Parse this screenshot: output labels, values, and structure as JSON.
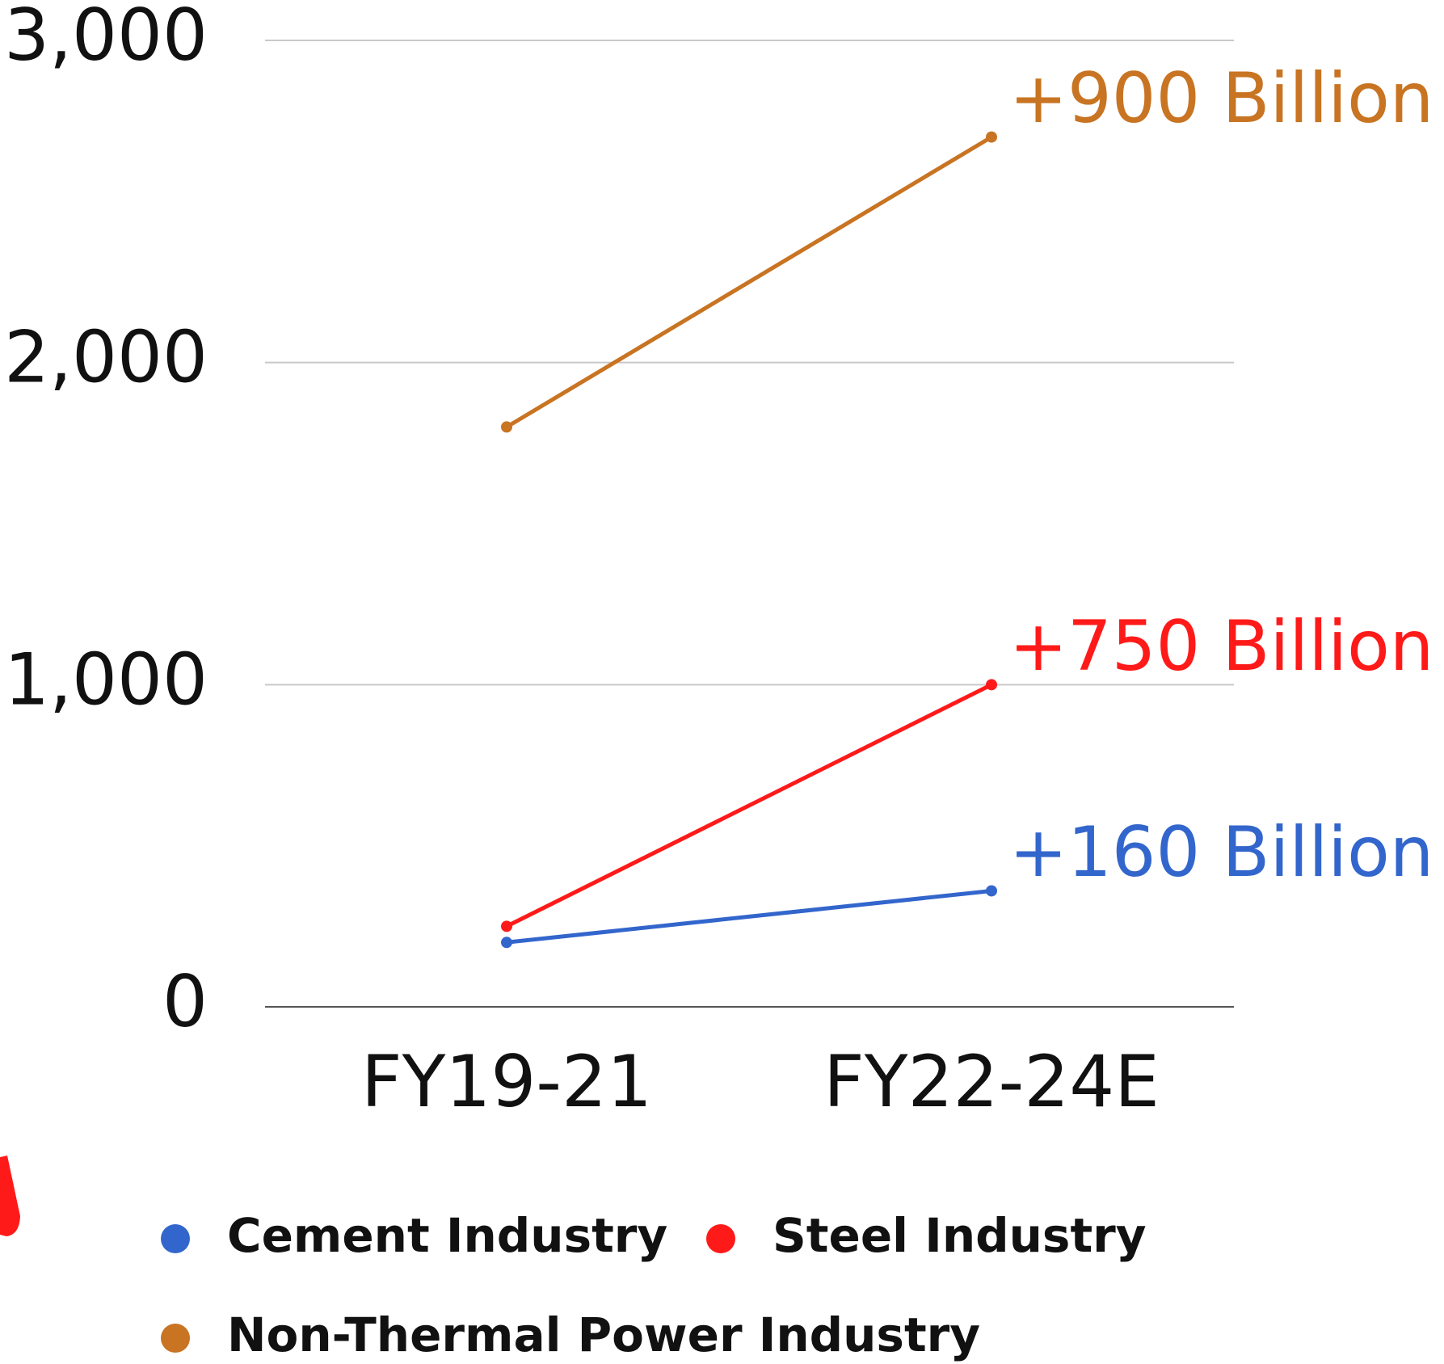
{
  "chart_data": {
    "type": "line",
    "categories": [
      "FY19-21",
      "FY22-24E"
    ],
    "series": [
      {
        "name": "Cement Industry",
        "color": "#3366cc",
        "values": [
          200,
          360
        ],
        "annotation": "+160 Billion"
      },
      {
        "name": "Steel Industry",
        "color": "#ff1a1a",
        "values": [
          250,
          1000
        ],
        "annotation": "+750 Billion"
      },
      {
        "name": "Non-Thermal Power Industry",
        "color": "#c87422",
        "values": [
          1800,
          2700
        ],
        "annotation": "+900 Billion"
      }
    ],
    "ylim": [
      0,
      3000
    ],
    "yticks": [
      {
        "value": 0,
        "label": "0"
      },
      {
        "value": 1000,
        "label": "1,000"
      },
      {
        "value": 2000,
        "label": "2,000"
      },
      {
        "value": 3000,
        "label": "3,000"
      }
    ],
    "grid": true
  }
}
